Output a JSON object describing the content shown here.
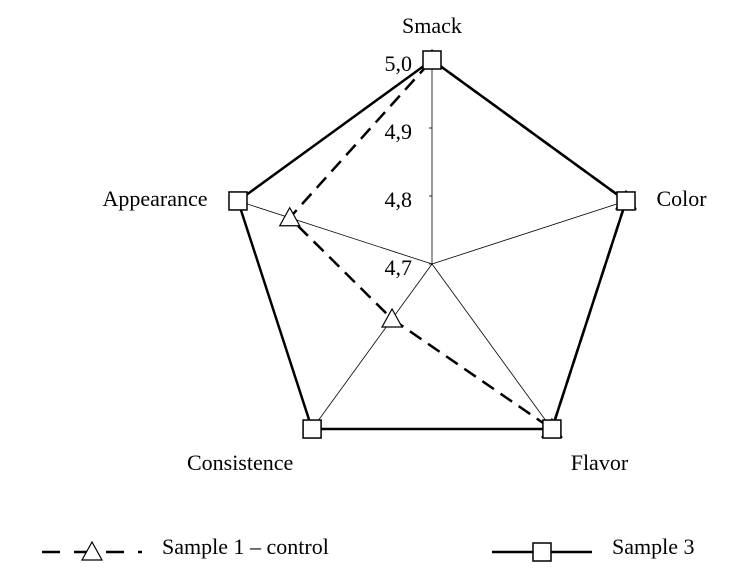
{
  "chart_data": {
    "type": "radar",
    "categories": [
      "Smack",
      "Color",
      "Flavor",
      "Consistence",
      "Appearance"
    ],
    "rlim": [
      4.7,
      5.0
    ],
    "rticks": [
      {
        "value": 4.7,
        "label": "4,7"
      },
      {
        "value": 4.8,
        "label": "4,8"
      },
      {
        "value": 4.9,
        "label": "4,9"
      },
      {
        "value": 5.0,
        "label": "5,0"
      }
    ],
    "series": [
      {
        "name": "Sample 1 – control",
        "color": "#000000",
        "marker": "triangle",
        "dashed": true,
        "values": [
          5.0,
          5.0,
          5.0,
          4.8,
          4.92
        ]
      },
      {
        "name": "Sample 3",
        "color": "#000000",
        "marker": "square",
        "dashed": false,
        "values": [
          5.0,
          5.0,
          5.0,
          5.0,
          5.0
        ]
      }
    ],
    "legend": "bottom"
  }
}
